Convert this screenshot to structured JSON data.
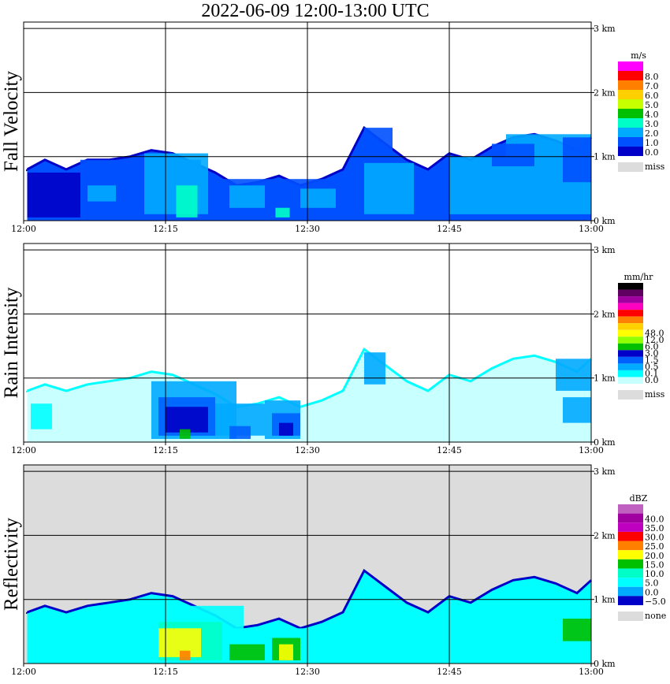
{
  "title": "2022-06-09   12:00-13:00 UTC",
  "chart_data": [
    {
      "type": "heatmap",
      "title": "Fall Velocity",
      "x_ticks": [
        "12:00",
        "12:15",
        "12:30",
        "12:45",
        "13:00"
      ],
      "y_ticks": [
        "0 km",
        "1 km",
        "2 km",
        "3 km"
      ],
      "ylim": [
        0,
        3.1
      ],
      "grid": true,
      "colorbar": {
        "unit": "m/s",
        "labels": [
          "8.0",
          "7.0",
          "6.0",
          "5.0",
          "4.0",
          "3.0",
          "2.0",
          "1.0",
          "0.0"
        ],
        "colors": [
          "#ff00ff",
          "#ff0000",
          "#ff8000",
          "#ffd000",
          "#c8ff00",
          "#00c000",
          "#00ffc8",
          "#00aaff",
          "#0050ff",
          "#0000c8"
        ],
        "missing_label": "miss",
        "missing_color": "#dcdcdc"
      },
      "echo_top": [
        {
          "t": 12.05,
          "h": 0.8
        },
        {
          "t": 12.3,
          "h": 0.95
        },
        {
          "t": 12.6,
          "h": 0.8
        },
        {
          "t": 12.9,
          "h": 0.95
        },
        {
          "t": 13.2,
          "h": 0.95
        },
        {
          "t": 13.5,
          "h": 1.0
        },
        {
          "t": 13.8,
          "h": 1.1
        },
        {
          "t": 14.1,
          "h": 1.05
        },
        {
          "t": 14.4,
          "h": 0.9
        },
        {
          "t": 14.7,
          "h": 0.75
        },
        {
          "t": 15.0,
          "h": 0.55
        },
        {
          "t": 15.3,
          "h": 0.6
        },
        {
          "t": 15.6,
          "h": 0.7
        },
        {
          "t": 15.9,
          "h": 0.55
        },
        {
          "t": 16.2,
          "h": 0.65
        },
        {
          "t": 16.5,
          "h": 0.8
        },
        {
          "t": 16.8,
          "h": 1.45
        },
        {
          "t": 17.1,
          "h": 1.2
        },
        {
          "t": 17.4,
          "h": 0.95
        },
        {
          "t": 17.7,
          "h": 0.8
        },
        {
          "t": 18.0,
          "h": 1.05
        },
        {
          "t": 18.3,
          "h": 0.95
        },
        {
          "t": 18.6,
          "h": 1.15
        },
        {
          "t": 18.9,
          "h": 1.3
        },
        {
          "t": 19.2,
          "h": 1.35
        },
        {
          "t": 19.5,
          "h": 1.25
        },
        {
          "t": 19.8,
          "h": 1.1
        },
        {
          "t": 20.0,
          "h": 1.3
        }
      ],
      "cells": [
        {
          "t0": 12.05,
          "t1": 12.8,
          "h0": 0.05,
          "h1": 0.75,
          "v": "0.0"
        },
        {
          "t0": 12.8,
          "t1": 14.5,
          "h0": 0.05,
          "h1": 0.95,
          "v": "1.0"
        },
        {
          "t0": 14.5,
          "t1": 16.6,
          "h0": 0.05,
          "h1": 0.65,
          "v": "1.0"
        },
        {
          "t0": 13.7,
          "t1": 14.6,
          "h0": 0.1,
          "h1": 1.05,
          "v": "2.0"
        },
        {
          "t0": 12.9,
          "t1": 13.3,
          "h0": 0.3,
          "h1": 0.55,
          "v": "2.0"
        },
        {
          "t0": 14.9,
          "t1": 15.4,
          "h0": 0.2,
          "h1": 0.55,
          "v": "2.0"
        },
        {
          "t0": 15.9,
          "t1": 16.4,
          "h0": 0.2,
          "h1": 0.5,
          "v": "2.0"
        },
        {
          "t0": 16.8,
          "t1": 17.2,
          "h0": 0.8,
          "h1": 1.45,
          "v": "1.0"
        },
        {
          "t0": 16.8,
          "t1": 17.5,
          "h0": 0.1,
          "h1": 0.9,
          "v": "2.0"
        },
        {
          "t0": 18.0,
          "t1": 18.8,
          "h0": 0.1,
          "h1": 1.0,
          "v": "2.0"
        },
        {
          "t0": 18.8,
          "t1": 20.0,
          "h0": 0.1,
          "h1": 1.35,
          "v": "2.0"
        },
        {
          "t0": 18.6,
          "t1": 19.2,
          "h0": 0.85,
          "h1": 1.2,
          "v": "1.0"
        },
        {
          "t0": 19.6,
          "t1": 20.0,
          "h0": 0.6,
          "h1": 1.3,
          "v": "1.0"
        },
        {
          "t0": 14.15,
          "t1": 14.45,
          "h0": 0.05,
          "h1": 0.55,
          "v": "3.0"
        },
        {
          "t0": 15.55,
          "t1": 15.75,
          "h0": 0.05,
          "h1": 0.2,
          "v": "3.0"
        }
      ]
    },
    {
      "type": "heatmap",
      "title": "Rain Intensity",
      "x_ticks": [
        "12:00",
        "12:15",
        "12:30",
        "12:45",
        "13:00"
      ],
      "y_ticks": [
        "0 km",
        "1 km",
        "2 km",
        "3 km"
      ],
      "ylim": [
        0,
        3.1
      ],
      "grid": true,
      "colorbar": {
        "unit": "mm/hr",
        "labels": [
          "48.0",
          "12.0",
          "6.0",
          "3.0",
          "1.5",
          "0.5",
          "0.1",
          "0.0"
        ],
        "colors": [
          "#000000",
          "#600060",
          "#a000a0",
          "#ff00c0",
          "#ff0000",
          "#ff8000",
          "#ffd000",
          "#ffff00",
          "#90ff00",
          "#00c000",
          "#0000c8",
          "#0060ff",
          "#00aaff",
          "#00ffff",
          "#c8ffff"
        ],
        "missing_label": "miss",
        "missing_color": "#dcdcdc"
      },
      "echo_top": [
        {
          "t": 12.05,
          "h": 0.8
        },
        {
          "t": 12.3,
          "h": 0.9
        },
        {
          "t": 12.6,
          "h": 0.8
        },
        {
          "t": 12.9,
          "h": 0.9
        },
        {
          "t": 13.2,
          "h": 0.95
        },
        {
          "t": 13.5,
          "h": 1.0
        },
        {
          "t": 13.8,
          "h": 1.1
        },
        {
          "t": 14.1,
          "h": 1.05
        },
        {
          "t": 14.4,
          "h": 0.9
        },
        {
          "t": 14.7,
          "h": 0.75
        },
        {
          "t": 15.0,
          "h": 0.55
        },
        {
          "t": 15.3,
          "h": 0.6
        },
        {
          "t": 15.6,
          "h": 0.7
        },
        {
          "t": 15.9,
          "h": 0.55
        },
        {
          "t": 16.2,
          "h": 0.65
        },
        {
          "t": 16.5,
          "h": 0.8
        },
        {
          "t": 16.8,
          "h": 1.45
        },
        {
          "t": 17.1,
          "h": 1.2
        },
        {
          "t": 17.4,
          "h": 0.95
        },
        {
          "t": 17.7,
          "h": 0.8
        },
        {
          "t": 18.0,
          "h": 1.05
        },
        {
          "t": 18.3,
          "h": 0.95
        },
        {
          "t": 18.6,
          "h": 1.15
        },
        {
          "t": 18.9,
          "h": 1.3
        },
        {
          "t": 19.2,
          "h": 1.35
        },
        {
          "t": 19.5,
          "h": 1.25
        },
        {
          "t": 19.8,
          "h": 1.1
        },
        {
          "t": 20.0,
          "h": 1.3
        }
      ],
      "cells": [
        {
          "t0": 12.1,
          "t1": 12.4,
          "h0": 0.2,
          "h1": 0.6,
          "v": "0.1"
        },
        {
          "t0": 13.8,
          "t1": 15.0,
          "h0": 0.05,
          "h1": 0.95,
          "v": "0.5"
        },
        {
          "t0": 14.7,
          "t1": 15.4,
          "h0": 0.1,
          "h1": 0.6,
          "v": "0.5"
        },
        {
          "t0": 15.4,
          "t1": 15.9,
          "h0": 0.05,
          "h1": 0.65,
          "v": "0.5"
        },
        {
          "t0": 13.9,
          "t1": 14.7,
          "h0": 0.1,
          "h1": 0.7,
          "v": "1.5"
        },
        {
          "t0": 14.0,
          "t1": 14.6,
          "h0": 0.15,
          "h1": 0.55,
          "v": "3.0"
        },
        {
          "t0": 14.9,
          "t1": 15.2,
          "h0": 0.05,
          "h1": 0.25,
          "v": "1.5"
        },
        {
          "t0": 15.5,
          "t1": 15.9,
          "h0": 0.1,
          "h1": 0.45,
          "v": "1.5"
        },
        {
          "t0": 15.6,
          "t1": 15.8,
          "h0": 0.1,
          "h1": 0.3,
          "v": "3.0"
        },
        {
          "t0": 14.2,
          "t1": 14.35,
          "h0": 0.05,
          "h1": 0.2,
          "v": "6.0"
        },
        {
          "t0": 16.8,
          "t1": 17.1,
          "h0": 0.9,
          "h1": 1.4,
          "v": "0.5"
        },
        {
          "t0": 19.6,
          "t1": 20.0,
          "h0": 0.3,
          "h1": 0.7,
          "v": "0.5"
        },
        {
          "t0": 19.5,
          "t1": 20.0,
          "h0": 0.8,
          "h1": 1.3,
          "v": "0.5"
        }
      ]
    },
    {
      "type": "heatmap",
      "title": "Reflectivity",
      "x_ticks": [
        "12:00",
        "12:15",
        "12:30",
        "12:45",
        "13:00"
      ],
      "y_ticks": [
        "0 km",
        "1 km",
        "2 km",
        "3 km"
      ],
      "ylim": [
        0,
        3.1
      ],
      "grid": true,
      "colorbar": {
        "unit": "dBZ",
        "labels": [
          "40.0",
          "35.0",
          "30.0",
          "25.0",
          "20.0",
          "15.0",
          "10.0",
          "5.0",
          "0.0",
          "−5.0"
        ],
        "colors": [
          "#c060c0",
          "#a000a0",
          "#c000c0",
          "#ff0000",
          "#ff8000",
          "#ffff00",
          "#00c000",
          "#00ffc8",
          "#00ffff",
          "#00aaff",
          "#0000c8"
        ],
        "missing_label": "none",
        "missing_color": "#dcdcdc"
      },
      "echo_top": [
        {
          "t": 12.05,
          "h": 0.8
        },
        {
          "t": 12.3,
          "h": 0.9
        },
        {
          "t": 12.6,
          "h": 0.8
        },
        {
          "t": 12.9,
          "h": 0.9
        },
        {
          "t": 13.2,
          "h": 0.95
        },
        {
          "t": 13.5,
          "h": 1.0
        },
        {
          "t": 13.8,
          "h": 1.1
        },
        {
          "t": 14.1,
          "h": 1.05
        },
        {
          "t": 14.4,
          "h": 0.9
        },
        {
          "t": 14.7,
          "h": 0.75
        },
        {
          "t": 15.0,
          "h": 0.55
        },
        {
          "t": 15.3,
          "h": 0.6
        },
        {
          "t": 15.6,
          "h": 0.7
        },
        {
          "t": 15.9,
          "h": 0.55
        },
        {
          "t": 16.2,
          "h": 0.65
        },
        {
          "t": 16.5,
          "h": 0.8
        },
        {
          "t": 16.8,
          "h": 1.45
        },
        {
          "t": 17.1,
          "h": 1.2
        },
        {
          "t": 17.4,
          "h": 0.95
        },
        {
          "t": 17.7,
          "h": 0.8
        },
        {
          "t": 18.0,
          "h": 1.05
        },
        {
          "t": 18.3,
          "h": 0.95
        },
        {
          "t": 18.6,
          "h": 1.15
        },
        {
          "t": 18.9,
          "h": 1.3
        },
        {
          "t": 19.2,
          "h": 1.35
        },
        {
          "t": 19.5,
          "h": 1.25
        },
        {
          "t": 19.8,
          "h": 1.1
        },
        {
          "t": 20.0,
          "h": 1.3
        }
      ],
      "cells": [
        {
          "t0": 13.7,
          "t1": 15.1,
          "h0": 0.05,
          "h1": 0.9,
          "v": "5.0"
        },
        {
          "t0": 14.5,
          "t1": 16.1,
          "h0": 0.05,
          "h1": 0.55,
          "v": "5.0"
        },
        {
          "t0": 13.9,
          "t1": 14.8,
          "h0": 0.05,
          "h1": 0.65,
          "v": "10.0"
        },
        {
          "t0": 13.9,
          "t1": 14.5,
          "h0": 0.1,
          "h1": 0.55,
          "v": "20.0"
        },
        {
          "t0": 14.9,
          "t1": 15.4,
          "h0": 0.05,
          "h1": 0.3,
          "v": "15.0"
        },
        {
          "t0": 15.5,
          "t1": 15.9,
          "h0": 0.05,
          "h1": 0.4,
          "v": "15.0"
        },
        {
          "t0": 15.6,
          "t1": 15.8,
          "h0": 0.05,
          "h1": 0.3,
          "v": "20.0"
        },
        {
          "t0": 14.2,
          "t1": 14.35,
          "h0": 0.05,
          "h1": 0.2,
          "v": "25.0"
        },
        {
          "t0": 19.6,
          "t1": 20.0,
          "h0": 0.35,
          "h1": 0.7,
          "v": "15.0"
        }
      ]
    }
  ]
}
